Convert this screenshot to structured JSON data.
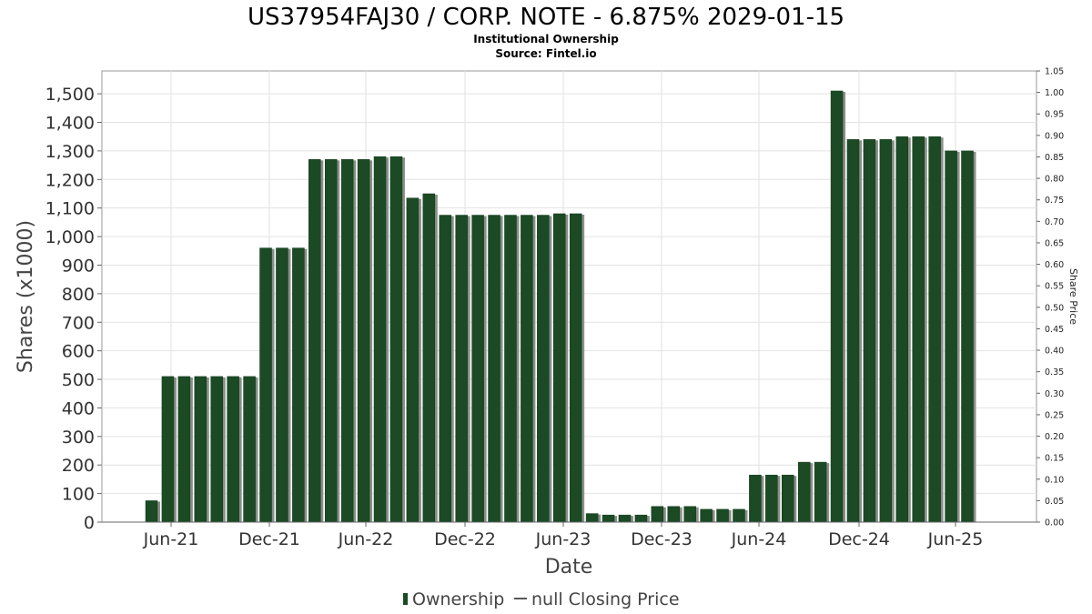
{
  "chart_data": {
    "type": "bar",
    "title": "US37954FAJ30 / CORP. NOTE - 6.875% 2029-01-15",
    "subtitle_1": "Institutional Ownership",
    "subtitle_2": "Source: Fintel.io",
    "xlabel": "Date",
    "ylabel": "Shares (x1000)",
    "y2label": "Share Price",
    "ylim": [
      0,
      1580
    ],
    "y2lim": [
      0,
      1.05
    ],
    "yticks": [
      "0",
      "100",
      "200",
      "300",
      "400",
      "500",
      "600",
      "700",
      "800",
      "900",
      "1,000",
      "1,100",
      "1,200",
      "1,300",
      "1,400",
      "1,500"
    ],
    "y2ticks": [
      "0.00",
      "0.05",
      "0.10",
      "0.15",
      "0.20",
      "0.25",
      "0.30",
      "0.35",
      "0.40",
      "0.45",
      "0.50",
      "0.55",
      "0.60",
      "0.65",
      "0.70",
      "0.75",
      "0.80",
      "0.85",
      "0.90",
      "0.95",
      "1.00",
      "1.05"
    ],
    "xticks": [
      "Jun-21",
      "Dec-21",
      "Jun-22",
      "Dec-22",
      "Jun-23",
      "Dec-23",
      "Jun-24",
      "Dec-24",
      "Jun-25"
    ],
    "grid": true,
    "legend_position": "bottom-center",
    "series": [
      {
        "name": "Ownership",
        "color": "#1b4a24",
        "values": [
          75,
          510,
          510,
          510,
          510,
          510,
          510,
          960,
          960,
          960,
          1270,
          1270,
          1270,
          1270,
          1280,
          1280,
          1135,
          1150,
          1075,
          1075,
          1075,
          1075,
          1075,
          1075,
          1075,
          1080,
          1080,
          30,
          25,
          25,
          25,
          55,
          55,
          55,
          45,
          45,
          45,
          165,
          165,
          165,
          210,
          210,
          1510,
          1340,
          1340,
          1340,
          1350,
          1350,
          1350,
          1300,
          1300
        ]
      }
    ],
    "legend": [
      {
        "label": "Ownership",
        "color": "#1b4a24",
        "marker": "bar"
      },
      {
        "label": "null Closing Price",
        "color": "#555555",
        "marker": "line"
      }
    ]
  }
}
